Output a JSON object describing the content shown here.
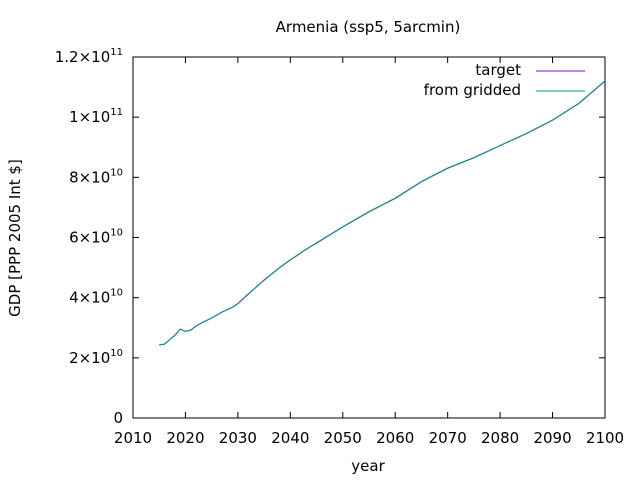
{
  "chart_data": {
    "type": "line",
    "title": "Armenia (ssp5, 5arcmin)",
    "xlabel": "year",
    "ylabel": "GDP [PPP 2005 Int $]",
    "xlim": [
      2010,
      2100
    ],
    "ylim": [
      0,
      120000000000
    ],
    "x_ticks": [
      2010,
      2020,
      2030,
      2040,
      2050,
      2060,
      2070,
      2080,
      2090,
      2100
    ],
    "y_ticks": [
      {
        "value": 0,
        "mantissa": "0",
        "exponent": ""
      },
      {
        "value": 20000000000,
        "mantissa": "2×10",
        "exponent": "10"
      },
      {
        "value": 40000000000,
        "mantissa": "4×10",
        "exponent": "10"
      },
      {
        "value": 60000000000,
        "mantissa": "6×10",
        "exponent": "10"
      },
      {
        "value": 80000000000,
        "mantissa": "8×10",
        "exponent": "10"
      },
      {
        "value": 100000000000,
        "mantissa": "1×10",
        "exponent": "11"
      },
      {
        "value": 120000000000,
        "mantissa": "1.2×10",
        "exponent": "11"
      }
    ],
    "grid": false,
    "legend_position": "top-right",
    "series": [
      {
        "name": "target",
        "color": "#9400d3",
        "x": [
          2015,
          2016,
          2017,
          2018,
          2019,
          2020,
          2021,
          2022,
          2023,
          2025,
          2027,
          2029,
          2030,
          2032,
          2035,
          2038,
          2040,
          2043,
          2046,
          2050,
          2055,
          2060,
          2065,
          2070,
          2075,
          2080,
          2085,
          2090,
          2095,
          2098,
          2100
        ],
        "y": [
          24300000000,
          24500000000,
          26000000000,
          27500000000,
          29500000000,
          28800000000,
          29200000000,
          30500000000,
          31500000000,
          33200000000,
          35200000000,
          36800000000,
          38000000000,
          41200000000,
          45800000000,
          50000000000,
          52500000000,
          56000000000,
          59200000000,
          63500000000,
          68500000000,
          73000000000,
          78500000000,
          83000000000,
          86500000000,
          90500000000,
          94500000000,
          99000000000,
          104500000000,
          109000000000,
          112000000000
        ]
      },
      {
        "name": "from gridded",
        "color": "#009e73",
        "x": [
          2015,
          2016,
          2017,
          2018,
          2019,
          2020,
          2021,
          2022,
          2023,
          2025,
          2027,
          2029,
          2030,
          2032,
          2035,
          2038,
          2040,
          2043,
          2046,
          2050,
          2055,
          2060,
          2065,
          2070,
          2075,
          2080,
          2085,
          2090,
          2095,
          2098,
          2100
        ],
        "y": [
          24300000000,
          24600000000,
          26100000000,
          27600000000,
          29600000000,
          28800000000,
          29300000000,
          30600000000,
          31600000000,
          33300000000,
          35300000000,
          36900000000,
          38100000000,
          41300000000,
          45900000000,
          50100000000,
          52600000000,
          56100000000,
          59300000000,
          63600000000,
          68600000000,
          73100000000,
          78600000000,
          83100000000,
          86600000000,
          90600000000,
          94600000000,
          99100000000,
          104600000000,
          109100000000,
          112100000000
        ]
      }
    ]
  }
}
